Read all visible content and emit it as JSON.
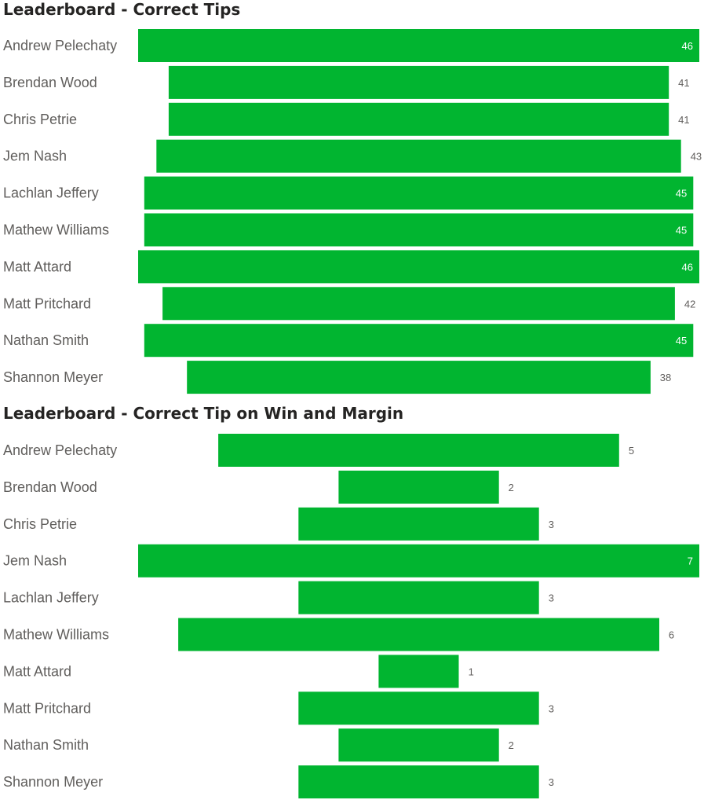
{
  "chart_data": [
    {
      "type": "bar",
      "orientation": "horizontal",
      "alignment": "center",
      "title": "Leaderboard - Correct Tips",
      "categories": [
        "Andrew Pelechaty",
        "Brendan Wood",
        "Chris Petrie",
        "Jem Nash",
        "Lachlan Jeffery",
        "Mathew Williams",
        "Matt Attard",
        "Matt Pritchard",
        "Nathan Smith",
        "Shannon Meyer"
      ],
      "values": [
        46,
        41,
        41,
        43,
        45,
        45,
        46,
        42,
        45,
        38
      ],
      "data_labels": [
        "46",
        "41",
        "41",
        "43",
        "45",
        "45",
        "46",
        "42",
        "45",
        "38"
      ],
      "color": "#01b530",
      "grid": false,
      "legend": "none"
    },
    {
      "type": "bar",
      "orientation": "horizontal",
      "alignment": "center",
      "title": "Leaderboard - Correct Tip on Win and Margin",
      "categories": [
        "Andrew Pelechaty",
        "Brendan Wood",
        "Chris Petrie",
        "Jem Nash",
        "Lachlan Jeffery",
        "Mathew Williams",
        "Matt Attard",
        "Matt Pritchard",
        "Nathan Smith",
        "Shannon Meyer"
      ],
      "values": [
        5,
        2,
        3,
        7,
        3,
        6,
        1,
        3,
        2,
        3
      ],
      "data_labels": [
        "5",
        "2",
        "3",
        "7",
        "3",
        "6",
        "1",
        "3",
        "2",
        "3"
      ],
      "color": "#01b530",
      "grid": false,
      "legend": "none"
    }
  ]
}
